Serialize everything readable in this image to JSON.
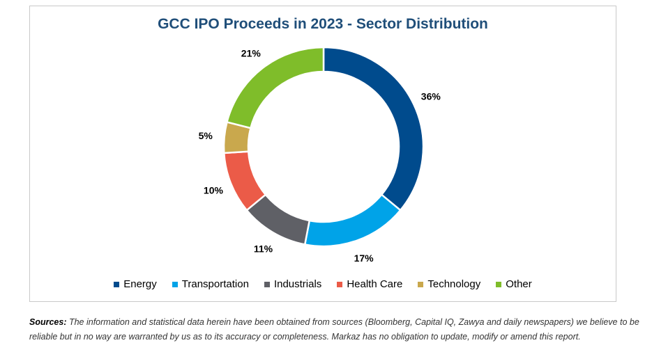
{
  "chart_data": {
    "type": "pie",
    "variant": "donut",
    "title": "GCC IPO Proceeds in 2023 - Sector Distribution",
    "categories": [
      "Energy",
      "Transportation",
      "Industrials",
      "Health Care",
      "Technology",
      "Other"
    ],
    "values": [
      36,
      17,
      11,
      10,
      5,
      21
    ],
    "labels": [
      "36%",
      "17%",
      "11%",
      "10%",
      "5%",
      "21%"
    ],
    "colors": [
      "#004b8d",
      "#00a3e8",
      "#5f6066",
      "#eb5b48",
      "#c9a84d",
      "#7fbd2a"
    ],
    "legend_position": "bottom"
  },
  "footer": {
    "label": "Sources:",
    "text": " The information and statistical data herein have been obtained from sources (Bloomberg, Capital IQ, Zawya and daily newspapers) we believe to be reliable but in no way are warranted by us as to its accuracy or completeness. Markaz has no obligation to update, modify or amend this report."
  }
}
